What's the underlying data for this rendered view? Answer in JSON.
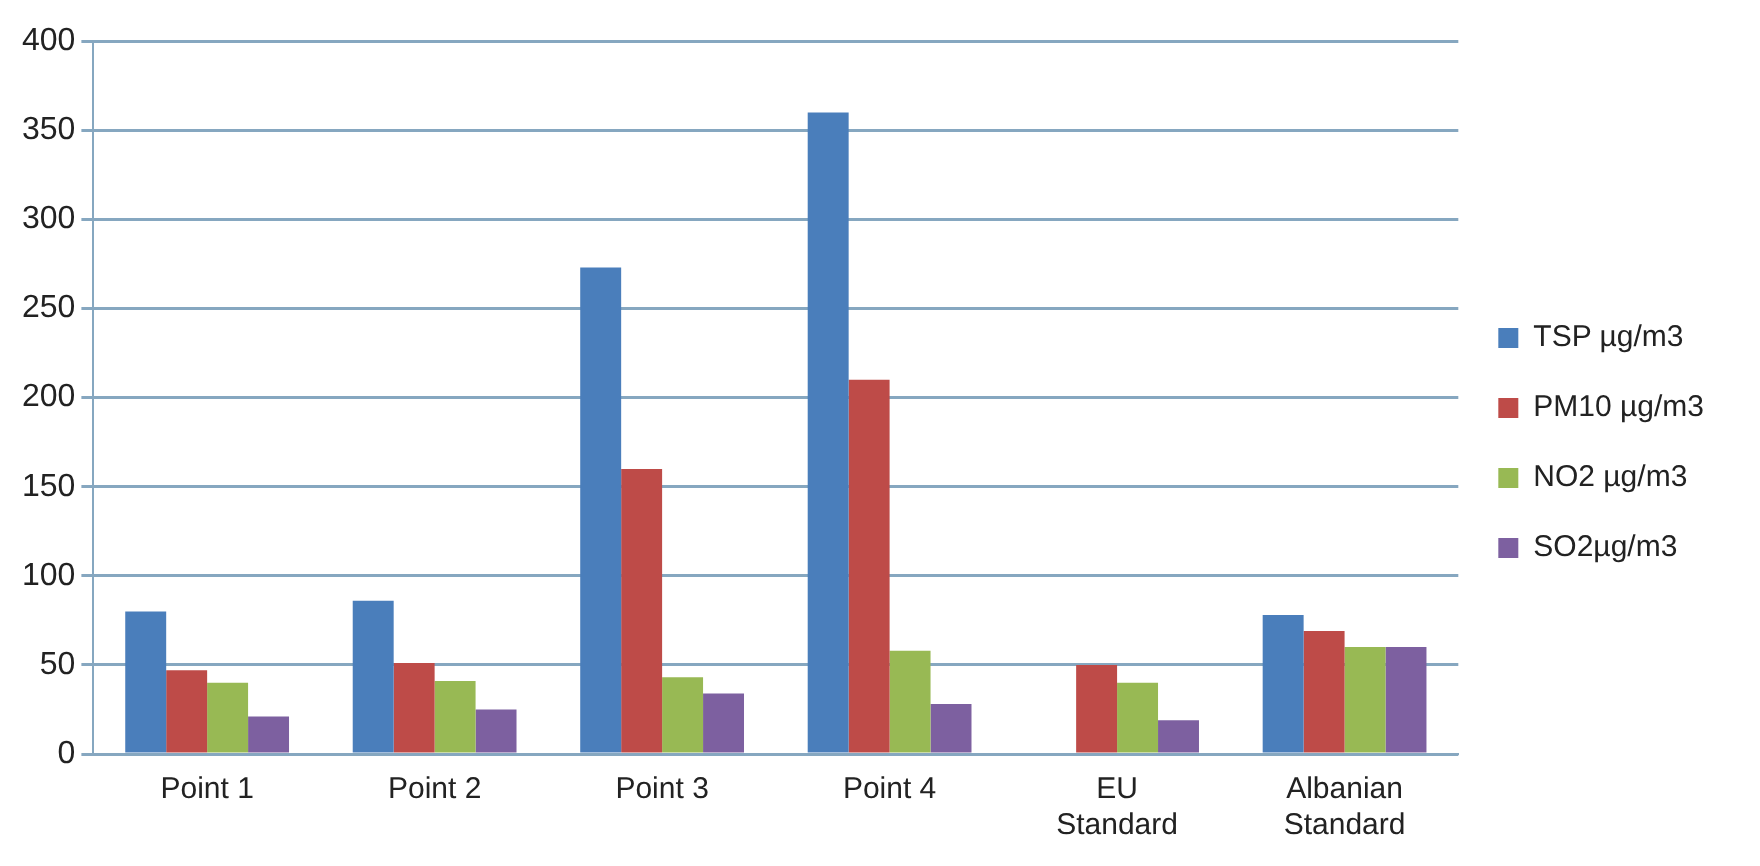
{
  "chart_data": {
    "type": "bar",
    "categories": [
      "Point 1",
      "Point 2",
      "Point 3",
      "Point 4",
      "EU Standard",
      "Albanian Standard"
    ],
    "series": [
      {
        "name": "TSP µg/m3",
        "color": "#4a7ebb",
        "values": [
          80,
          86,
          273,
          360,
          null,
          78
        ]
      },
      {
        "name": "PM10 µg/m3",
        "color": "#be4b48",
        "values": [
          47,
          51,
          160,
          210,
          50,
          69
        ]
      },
      {
        "name": "NO2 µg/m3",
        "color": "#98b954",
        "values": [
          40,
          41,
          43,
          58,
          40,
          60
        ]
      },
      {
        "name": "SO2µg/m3",
        "color": "#7d60a0",
        "values": [
          21,
          25,
          34,
          28,
          19,
          60
        ]
      }
    ],
    "ylim": [
      0,
      400
    ],
    "yticks": [
      0,
      50,
      100,
      150,
      200,
      250,
      300,
      350,
      400
    ],
    "grid": "y",
    "legend": "right"
  }
}
